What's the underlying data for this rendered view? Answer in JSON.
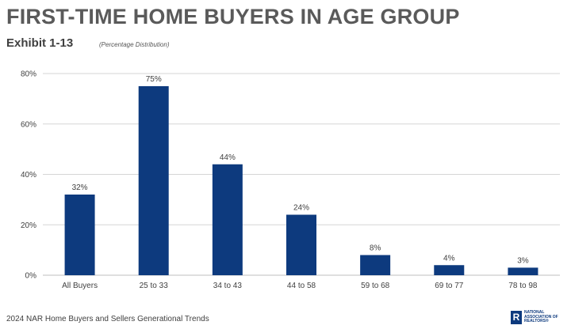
{
  "header": {
    "title": "FIRST-TIME HOME BUYERS IN AGE GROUP",
    "exhibit": "Exhibit 1-13",
    "subtitle": "(Percentage Distribution)"
  },
  "footer": {
    "source": "2024 NAR Home Buyers and Sellers Generational Trends",
    "logo_mark": "R",
    "logo_text": "NATIONAL\nASSOCIATION OF\nREALTORS®"
  },
  "colors": {
    "bar": "#0d3a7e",
    "grid": "#d6d6d6",
    "text": "#404040"
  },
  "chart_data": {
    "type": "bar",
    "categories": [
      "All Buyers",
      "25 to 33",
      "34 to 43",
      "44 to 58",
      "59 to 68",
      "69 to 77",
      "78 to 98"
    ],
    "values": [
      32,
      75,
      44,
      24,
      8,
      4,
      3
    ],
    "data_labels": [
      "32%",
      "75%",
      "44%",
      "24%",
      "8%",
      "4%",
      "3%"
    ],
    "yticks": [
      0,
      20,
      40,
      60,
      80
    ],
    "ytick_labels": [
      "0%",
      "20%",
      "40%",
      "60%",
      "80%"
    ],
    "ylim": [
      0,
      80
    ],
    "grid": true,
    "legend": "none"
  }
}
